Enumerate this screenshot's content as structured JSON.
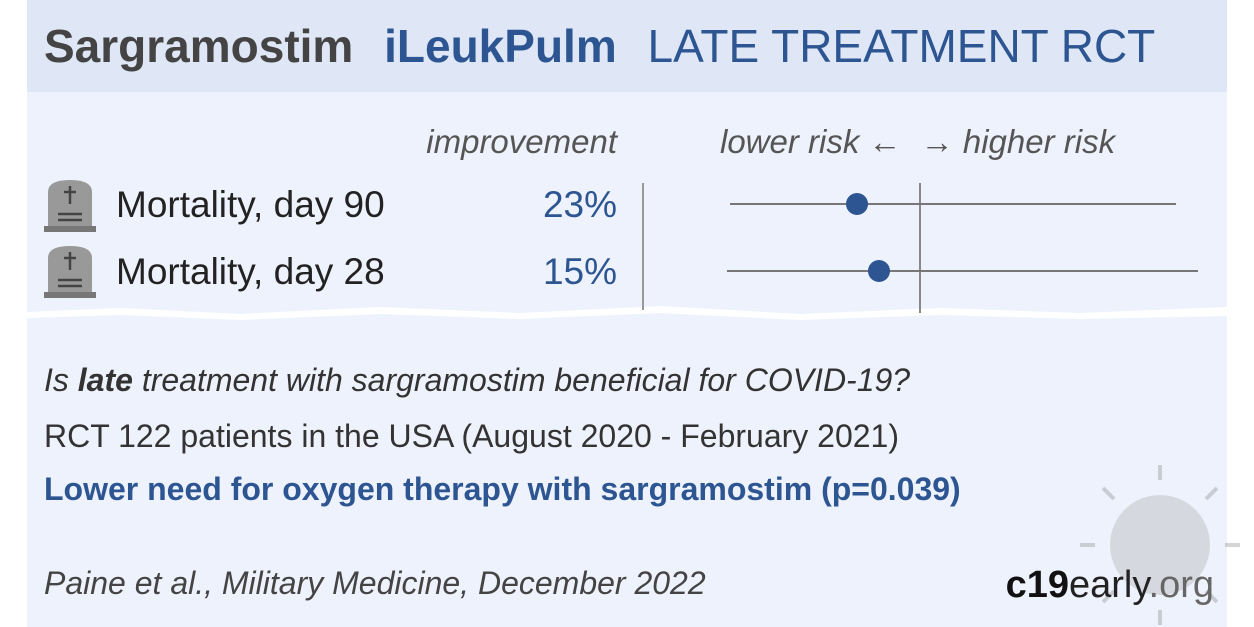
{
  "header": {
    "drug": "Sargramostim",
    "trial": "iLeukPulm",
    "label": "LATE TREATMENT RCT"
  },
  "plot": {
    "improvement_heading": "improvement",
    "lower_risk": "lower risk ←",
    "higher_risk": "→ higher risk"
  },
  "rows": [
    {
      "outcome": "Mortality, day 90",
      "improvement": "23%"
    },
    {
      "outcome": "Mortality, day 28",
      "improvement": "15%"
    }
  ],
  "summary": {
    "question": [
      "Is ",
      "late",
      " treatment with sargramostim beneficial for COVID-19?"
    ],
    "details": "RCT 122 patients in the USA (August 2020 - February 2021)",
    "conclusion": "Lower need for oxygen therapy with sargramostim (p=0.039)"
  },
  "footer": {
    "citation": "Paine et al., Military Medicine, December 2022",
    "site": [
      "c19",
      "early",
      ".org"
    ]
  }
}
